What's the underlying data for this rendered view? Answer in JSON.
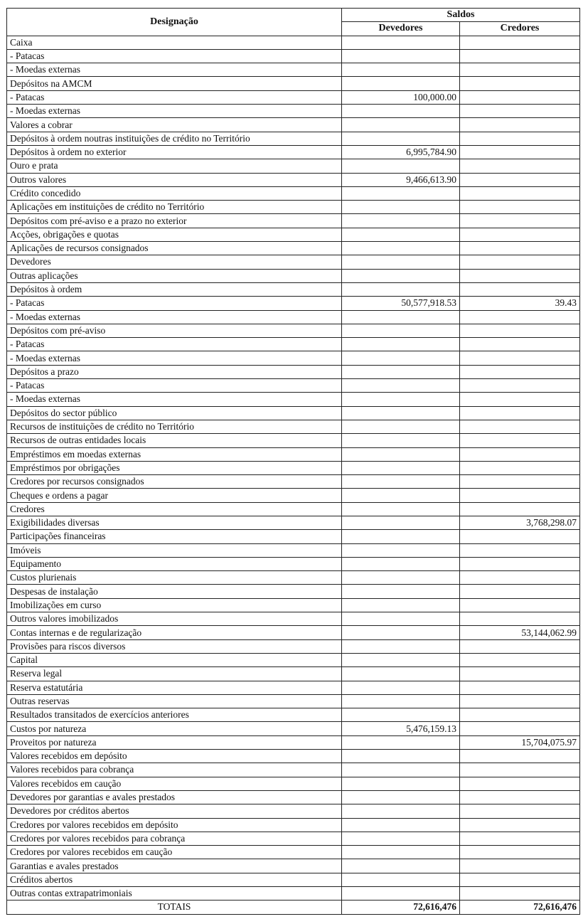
{
  "header": {
    "designacao": "Designação",
    "saldos": "Saldos",
    "devedores": "Devedores",
    "credores": "Credores"
  },
  "rows": [
    {
      "label": "Caixa",
      "devedores": "",
      "credores": ""
    },
    {
      "label": "- Patacas",
      "devedores": "",
      "credores": ""
    },
    {
      "label": "- Moedas externas",
      "devedores": "",
      "credores": ""
    },
    {
      "label": "Depósitos na AMCM",
      "devedores": "",
      "credores": ""
    },
    {
      "label": "- Patacas",
      "devedores": "100,000.00",
      "credores": ""
    },
    {
      "label": "- Moedas externas",
      "devedores": "",
      "credores": ""
    },
    {
      "label": "Valores a cobrar",
      "devedores": "",
      "credores": ""
    },
    {
      "label": "Depósitos à ordem noutras instituições de crédito no Território",
      "devedores": "",
      "credores": ""
    },
    {
      "label": "Depósitos à ordem no exterior",
      "devedores": "6,995,784.90",
      "credores": ""
    },
    {
      "label": "Ouro e prata",
      "devedores": "",
      "credores": ""
    },
    {
      "label": "Outros valores",
      "devedores": "9,466,613.90",
      "credores": ""
    },
    {
      "label": "Crédito concedido",
      "devedores": "",
      "credores": ""
    },
    {
      "label": "Aplicações em instituições de crédito no Território",
      "devedores": "",
      "credores": ""
    },
    {
      "label": "Depósitos com pré-aviso e a prazo no exterior",
      "devedores": "",
      "credores": ""
    },
    {
      "label": "Acções, obrigações e quotas",
      "devedores": "",
      "credores": ""
    },
    {
      "label": "Aplicações de recursos consignados",
      "devedores": "",
      "credores": ""
    },
    {
      "label": "Devedores",
      "devedores": "",
      "credores": ""
    },
    {
      "label": "Outras aplicações",
      "devedores": "",
      "credores": ""
    },
    {
      "label": "Depósitos à ordem",
      "devedores": "",
      "credores": ""
    },
    {
      "label": "- Patacas",
      "devedores": "50,577,918.53",
      "credores": "39.43"
    },
    {
      "label": "- Moedas externas",
      "devedores": "",
      "credores": ""
    },
    {
      "label": "Depósitos com pré-aviso",
      "devedores": "",
      "credores": ""
    },
    {
      "label": "- Patacas",
      "devedores": "",
      "credores": ""
    },
    {
      "label": "- Moedas externas",
      "devedores": "",
      "credores": ""
    },
    {
      "label": "Depósitos a prazo",
      "devedores": "",
      "credores": ""
    },
    {
      "label": "- Patacas",
      "devedores": "",
      "credores": ""
    },
    {
      "label": "- Moedas externas",
      "devedores": "",
      "credores": ""
    },
    {
      "label": "Depósitos do sector público",
      "devedores": "",
      "credores": ""
    },
    {
      "label": "Recursos de instituições de crédito no Território",
      "devedores": "",
      "credores": ""
    },
    {
      "label": "Recursos de outras entidades locais",
      "devedores": "",
      "credores": ""
    },
    {
      "label": "Empréstimos em moedas externas",
      "devedores": "",
      "credores": ""
    },
    {
      "label": "Empréstimos por obrigações",
      "devedores": "",
      "credores": ""
    },
    {
      "label": "Credores por recursos consignados",
      "devedores": "",
      "credores": ""
    },
    {
      "label": "Cheques e ordens a pagar",
      "devedores": "",
      "credores": ""
    },
    {
      "label": "Credores",
      "devedores": "",
      "credores": ""
    },
    {
      "label": "Exigibilidades diversas",
      "devedores": "",
      "credores": "3,768,298.07"
    },
    {
      "label": "Participações financeiras",
      "devedores": "",
      "credores": ""
    },
    {
      "label": "Imóveis",
      "devedores": "",
      "credores": ""
    },
    {
      "label": "Equipamento",
      "devedores": "",
      "credores": ""
    },
    {
      "label": "Custos plurienais",
      "devedores": "",
      "credores": ""
    },
    {
      "label": "Despesas de instalação",
      "devedores": "",
      "credores": ""
    },
    {
      "label": "Imobilizações em curso",
      "devedores": "",
      "credores": ""
    },
    {
      "label": "Outros valores imobilizados",
      "devedores": "",
      "credores": ""
    },
    {
      "label": "Contas internas e de regularização",
      "devedores": "",
      "credores": "53,144,062.99"
    },
    {
      "label": "Provisões para riscos diversos",
      "devedores": "",
      "credores": ""
    },
    {
      "label": "Capital",
      "devedores": "",
      "credores": ""
    },
    {
      "label": "Reserva legal",
      "devedores": "",
      "credores": ""
    },
    {
      "label": "Reserva estatutária",
      "devedores": "",
      "credores": ""
    },
    {
      "label": "Outras reservas",
      "devedores": "",
      "credores": ""
    },
    {
      "label": "Resultados transitados de exercícios anteriores",
      "devedores": "",
      "credores": ""
    },
    {
      "label": "Custos por natureza",
      "devedores": "5,476,159.13",
      "credores": ""
    },
    {
      "label": "Proveitos por natureza",
      "devedores": "",
      "credores": "15,704,075.97"
    },
    {
      "label": "Valores recebidos em depósito",
      "devedores": "",
      "credores": ""
    },
    {
      "label": "Valores recebidos para cobrança",
      "devedores": "",
      "credores": ""
    },
    {
      "label": "Valores recebidos em caução",
      "devedores": "",
      "credores": ""
    },
    {
      "label": "Devedores por garantias e avales prestados",
      "devedores": "",
      "credores": ""
    },
    {
      "label": "Devedores por créditos abertos",
      "devedores": "",
      "credores": ""
    },
    {
      "label": "Credores por valores recebidos em depósito",
      "devedores": "",
      "credores": ""
    },
    {
      "label": "Credores por valores recebidos para cobrança",
      "devedores": "",
      "credores": ""
    },
    {
      "label": "Credores por valores recebidos em caução",
      "devedores": "",
      "credores": ""
    },
    {
      "label": "Garantias e avales prestados",
      "devedores": "",
      "credores": ""
    },
    {
      "label": "Créditos abertos",
      "devedores": "",
      "credores": ""
    },
    {
      "label": "Outras contas extrapatrimoniais",
      "devedores": "",
      "credores": ""
    }
  ],
  "totals": {
    "label": "TOTAIS",
    "devedores": "72,616,476",
    "credores": "72,616,476"
  }
}
